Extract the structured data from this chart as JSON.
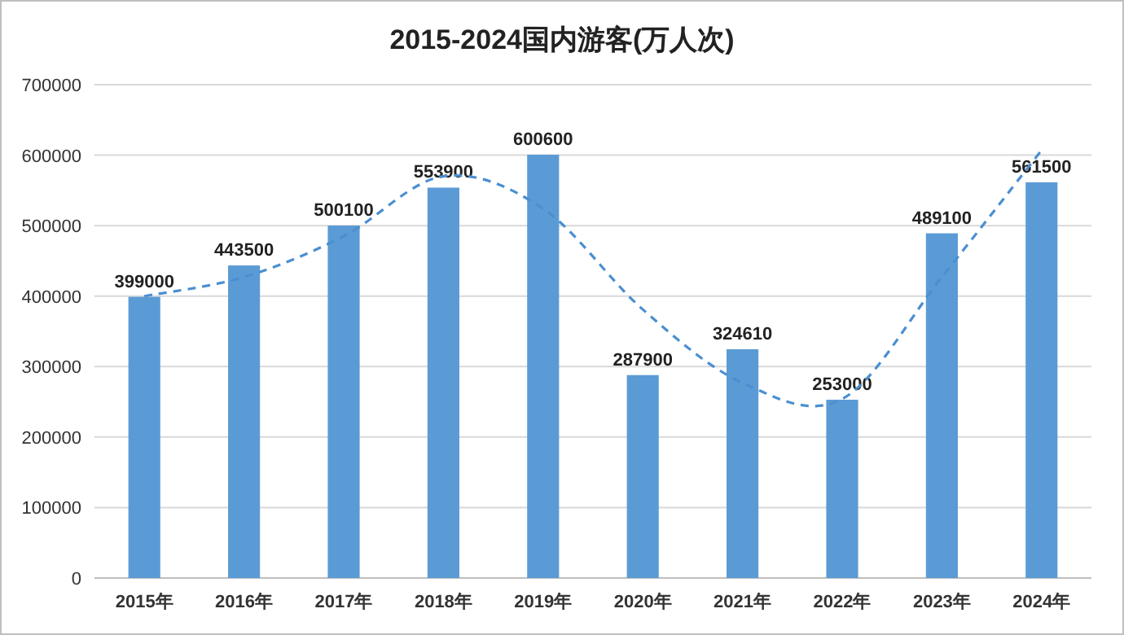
{
  "chart_data": {
    "type": "bar",
    "title": "2015-2024国内游客(万人次)",
    "categories": [
      "2015年",
      "2016年",
      "2017年",
      "2018年",
      "2019年",
      "2020年",
      "2021年",
      "2022年",
      "2023年",
      "2024年"
    ],
    "series": [
      {
        "color": "#5b9bd5",
        "values": [
          399000,
          443500,
          500100,
          553900,
          600600,
          287900,
          324610,
          253000,
          489100,
          561500
        ],
        "value_labels": [
          "399000",
          "443500",
          "500100",
          "553900",
          "600600",
          "287900",
          "324610",
          "253000",
          "489100",
          "561500"
        ]
      },
      {
        "type": "line",
        "color": "#4a8fd0",
        "line_style": "dashed",
        "values": [
          400000,
          427000,
          485000,
          570000,
          524000,
          381000,
          277000,
          254000,
          427000,
          607000
        ]
      }
    ],
    "ylim": [
      0,
      700000
    ],
    "yticks": [
      0,
      100000,
      200000,
      300000,
      400000,
      500000,
      600000,
      700000
    ],
    "grid": "y"
  }
}
